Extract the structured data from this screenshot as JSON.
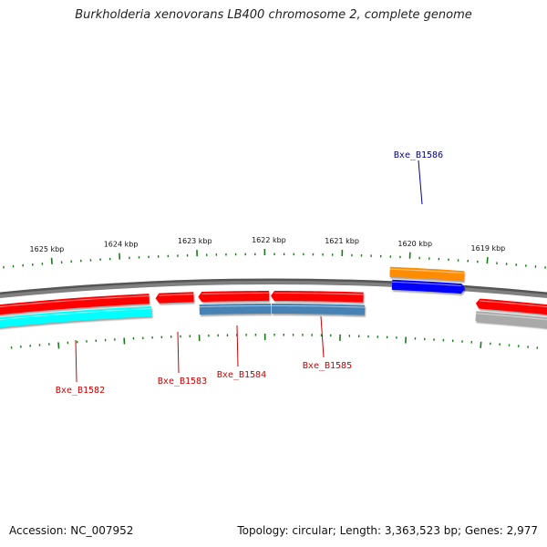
{
  "title": "Burkholderia xenovorans LB400 chromosome 2, complete genome",
  "footer": {
    "accession": "Accession: NC_007952",
    "stats": "Topology: circular; Length: 3,363,523 bp; Genes: 2,977"
  },
  "colors": {
    "backbone": "#808080",
    "tick": "#1a7a1a",
    "label_forward": "#00008b",
    "label_reverse": "#cc0000",
    "red": "#ff0000",
    "cyan": "#00ffff",
    "steelblue": "#4682b4",
    "orange": "#ff8c00",
    "blue": "#0000ff",
    "gray": "#a9a9a9"
  },
  "ticks": [
    "1625 kbp",
    "1624 kbp",
    "1623 kbp",
    "1622 kbp",
    "1621 kbp",
    "1620 kbp",
    "1619 kbp"
  ],
  "gene_labels": [
    {
      "name": "Bxe_B1586",
      "strand": "forward"
    },
    {
      "name": "Bxe_B1582",
      "strand": "reverse"
    },
    {
      "name": "Bxe_B1583",
      "strand": "reverse"
    },
    {
      "name": "Bxe_B1584",
      "strand": "reverse"
    },
    {
      "name": "Bxe_B1585",
      "strand": "reverse"
    }
  ]
}
